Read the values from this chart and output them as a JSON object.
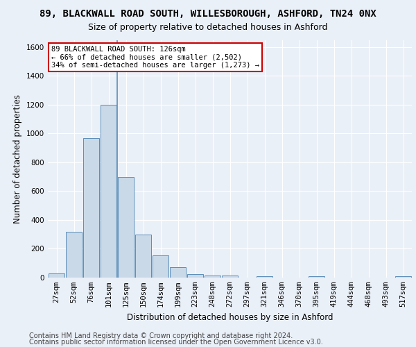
{
  "title_line1": "89, BLACKWALL ROAD SOUTH, WILLESBOROUGH, ASHFORD, TN24 0NX",
  "title_line2": "Size of property relative to detached houses in Ashford",
  "xlabel": "Distribution of detached houses by size in Ashford",
  "ylabel": "Number of detached properties",
  "bar_labels": [
    "27sqm",
    "52sqm",
    "76sqm",
    "101sqm",
    "125sqm",
    "150sqm",
    "174sqm",
    "199sqm",
    "223sqm",
    "248sqm",
    "272sqm",
    "297sqm",
    "321sqm",
    "346sqm",
    "370sqm",
    "395sqm",
    "419sqm",
    "444sqm",
    "468sqm",
    "493sqm",
    "517sqm"
  ],
  "bar_values": [
    30,
    320,
    970,
    1200,
    700,
    300,
    155,
    70,
    25,
    15,
    15,
    0,
    10,
    0,
    0,
    10,
    0,
    0,
    0,
    0,
    10
  ],
  "bar_color": "#c9d9e8",
  "bar_edge_color": "#5b8db8",
  "subject_line_index": 4,
  "subject_line_color": "#5b8db8",
  "annotation_text": "89 BLACKWALL ROAD SOUTH: 126sqm\n← 66% of detached houses are smaller (2,502)\n34% of semi-detached houses are larger (1,273) →",
  "annotation_box_color": "#ffffff",
  "annotation_box_edge": "#cc0000",
  "ylim": [
    0,
    1650
  ],
  "yticks": [
    0,
    200,
    400,
    600,
    800,
    1000,
    1200,
    1400,
    1600
  ],
  "footer_line1": "Contains HM Land Registry data © Crown copyright and database right 2024.",
  "footer_line2": "Contains public sector information licensed under the Open Government Licence v3.0.",
  "bg_color": "#eaf0f8",
  "plot_bg_color": "#eaf0f8",
  "grid_color": "#ffffff",
  "title_fontsize": 10,
  "subtitle_fontsize": 9,
  "axis_label_fontsize": 8.5,
  "tick_fontsize": 7.5,
  "annotation_fontsize": 7.5,
  "footer_fontsize": 7
}
